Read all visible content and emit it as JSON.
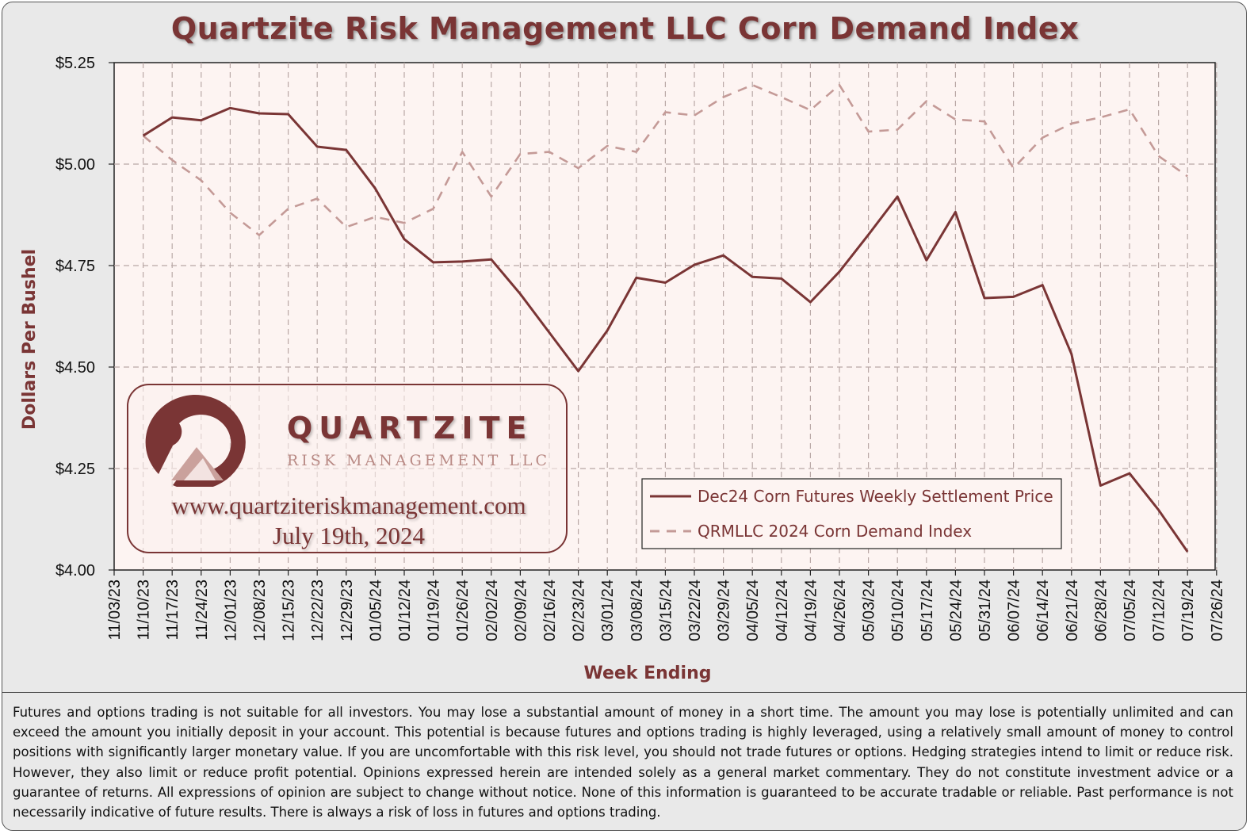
{
  "title": "Quartzite Risk Management LLC Corn Demand Index",
  "logo": {
    "name": "QUARTZITE",
    "subtitle": "RISK MANAGEMENT LLC",
    "url": "www.quartziteriskmanagement.com",
    "date": "July 19th, 2024"
  },
  "disclaimer": "Futures and options trading is not suitable for all investors. You may lose a substantial amount of money in a short time. The amount you may lose is potentially unlimited and can exceed the amount you initially deposit in your account. This potential is because futures and options trading is highly leveraged, using a relatively small amount of money to control positions with significantly larger monetary value. If you are uncomfortable with this risk level, you should not trade futures or options. Hedging strategies intend to limit or reduce risk. However, they also limit or reduce profit potential. Opinions expressed herein are intended solely as a general market commentary. They do not constitute investment advice or a guarantee of returns. All expressions of opinion are subject to change without notice. None of this information is guaranteed to be accurate tradable or reliable. Past performance is not necessarily indicative of future results. There is always a risk of loss in futures and options trading.",
  "colors": {
    "accent": "#7a3535",
    "dashed": "#c49a97",
    "plot_bg": "#fdf4f2",
    "frame_bg": "#e9e9e9"
  },
  "chart_data": {
    "type": "line",
    "xlabel": "Week Ending",
    "ylabel": "Dollars Per Bushel",
    "ylim": [
      4.0,
      5.25
    ],
    "yticks": [
      "$4.00",
      "$4.25",
      "$4.50",
      "$4.75",
      "$5.00",
      "$5.25"
    ],
    "ytick_values": [
      4.0,
      4.25,
      4.5,
      4.75,
      5.0,
      5.25
    ],
    "grid": true,
    "legend_position": "bottom-right",
    "categories": [
      "11/03/23",
      "11/10/23",
      "11/17/23",
      "11/24/23",
      "12/01/23",
      "12/08/23",
      "12/15/23",
      "12/22/23",
      "12/29/23",
      "01/05/24",
      "01/12/24",
      "01/19/24",
      "01/26/24",
      "02/02/24",
      "02/09/24",
      "02/16/24",
      "02/23/24",
      "03/01/24",
      "03/08/24",
      "03/15/24",
      "03/22/24",
      "03/29/24",
      "04/05/24",
      "04/12/24",
      "04/19/24",
      "04/26/24",
      "05/03/24",
      "05/10/24",
      "05/17/24",
      "05/24/24",
      "05/31/24",
      "06/07/24",
      "06/14/24",
      "06/21/24",
      "06/28/24",
      "07/05/24",
      "07/12/24",
      "07/19/24",
      "07/26/24"
    ],
    "series": [
      {
        "name": "Dec24 Corn Futures Weekly Settlement Price",
        "style": "solid",
        "values": [
          null,
          5.07,
          5.115,
          5.108,
          5.138,
          5.125,
          5.123,
          5.043,
          5.035,
          4.94,
          4.815,
          4.758,
          4.76,
          4.765,
          4.68,
          4.585,
          4.49,
          4.59,
          4.72,
          4.708,
          4.752,
          4.775,
          4.722,
          4.718,
          4.66,
          4.735,
          4.826,
          4.92,
          4.763,
          4.882,
          4.67,
          4.673,
          4.702,
          4.532,
          4.208,
          4.238,
          4.148,
          4.045,
          null
        ]
      },
      {
        "name": "QRMLLC 2024 Corn Demand Index",
        "style": "dashed",
        "values": [
          null,
          5.07,
          5.01,
          4.96,
          4.88,
          4.825,
          4.89,
          4.915,
          4.845,
          4.87,
          4.855,
          4.89,
          5.03,
          4.92,
          5.025,
          5.03,
          4.99,
          5.045,
          5.03,
          5.128,
          5.12,
          5.165,
          5.195,
          5.165,
          5.133,
          5.195,
          5.08,
          5.085,
          5.155,
          5.11,
          5.105,
          4.99,
          5.065,
          5.1,
          5.115,
          5.135,
          5.02,
          4.97,
          null
        ]
      }
    ]
  }
}
